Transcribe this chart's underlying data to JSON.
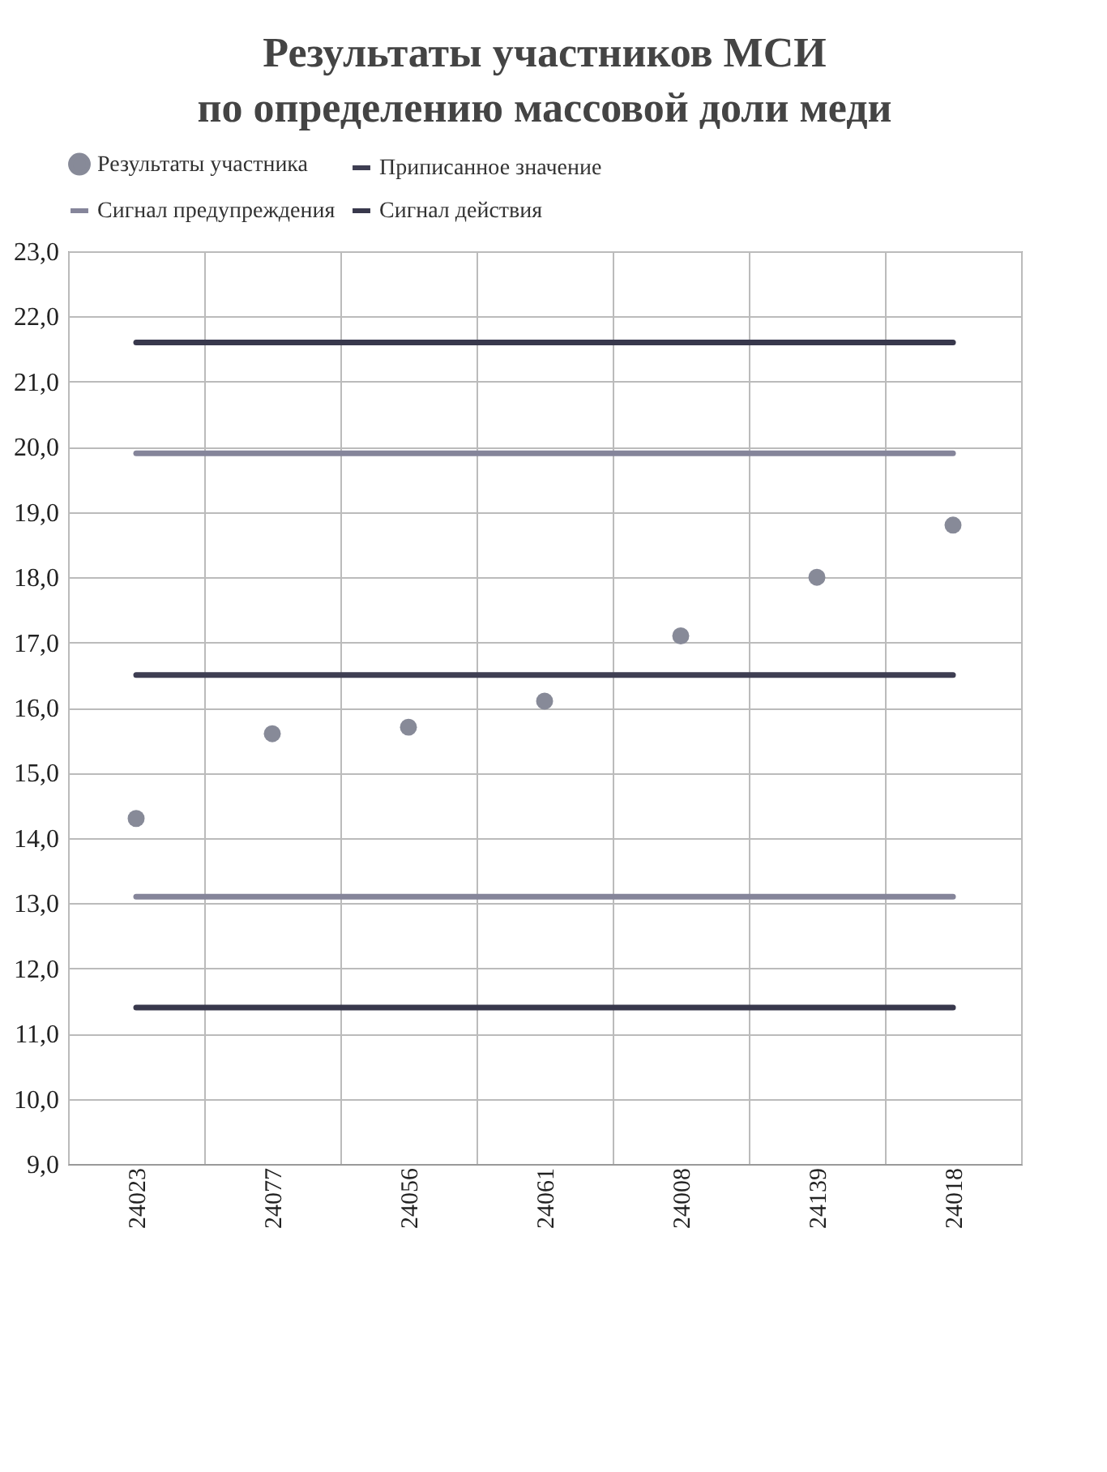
{
  "chart_data": {
    "type": "scatter",
    "title": [
      "Результаты участников МСИ",
      "по определению массовой доли меди"
    ],
    "categories": [
      "24023",
      "24077",
      "24056",
      "24061",
      "24008",
      "24139",
      "24018"
    ],
    "series": [
      {
        "name": "Результаты участника",
        "type": "scatter",
        "marker": "circle",
        "color": "#878a98",
        "values": [
          14.3,
          15.6,
          15.7,
          16.1,
          17.1,
          18.0,
          18.8
        ]
      },
      {
        "name": "Приписанное значение",
        "type": "line",
        "color": "#3e3e52",
        "values": [
          16.5,
          16.5,
          16.5,
          16.5,
          16.5,
          16.5,
          16.5
        ]
      },
      {
        "name": "Сигнал предупреждения",
        "type": "line",
        "color": "#85859a",
        "values": [
          19.9,
          19.9,
          19.9,
          19.9,
          19.9,
          19.9,
          19.9
        ]
      },
      {
        "name": "Сигнал действия",
        "type": "line",
        "color": "#38384c",
        "values": [
          21.6,
          21.6,
          21.6,
          21.6,
          21.6,
          21.6,
          21.6
        ]
      },
      {
        "type": "line",
        "color": "#85859a",
        "values": [
          13.1,
          13.1,
          13.1,
          13.1,
          13.1,
          13.1,
          13.1
        ]
      },
      {
        "type": "line",
        "color": "#38384c",
        "values": [
          11.4,
          11.4,
          11.4,
          11.4,
          11.4,
          11.4,
          11.4
        ]
      }
    ],
    "ylim": [
      9,
      23
    ],
    "yticks": [
      {
        "value": 9,
        "label": "9,0"
      },
      {
        "value": 10,
        "label": "10,0"
      },
      {
        "value": 11,
        "label": "11,0"
      },
      {
        "value": 12,
        "label": "12,0"
      },
      {
        "value": 13,
        "label": "13,0"
      },
      {
        "value": 14,
        "label": "14,0"
      },
      {
        "value": 15,
        "label": "15,0"
      },
      {
        "value": 16,
        "label": "16,0"
      },
      {
        "value": 17,
        "label": "17,0"
      },
      {
        "value": 18,
        "label": "18,0"
      },
      {
        "value": 19,
        "label": "19,0"
      },
      {
        "value": 20,
        "label": "20,0"
      },
      {
        "value": 21,
        "label": "21,0"
      },
      {
        "value": 22,
        "label": "22,0"
      },
      {
        "value": 23,
        "label": "23,0"
      }
    ],
    "grid": true,
    "legend": "top"
  }
}
